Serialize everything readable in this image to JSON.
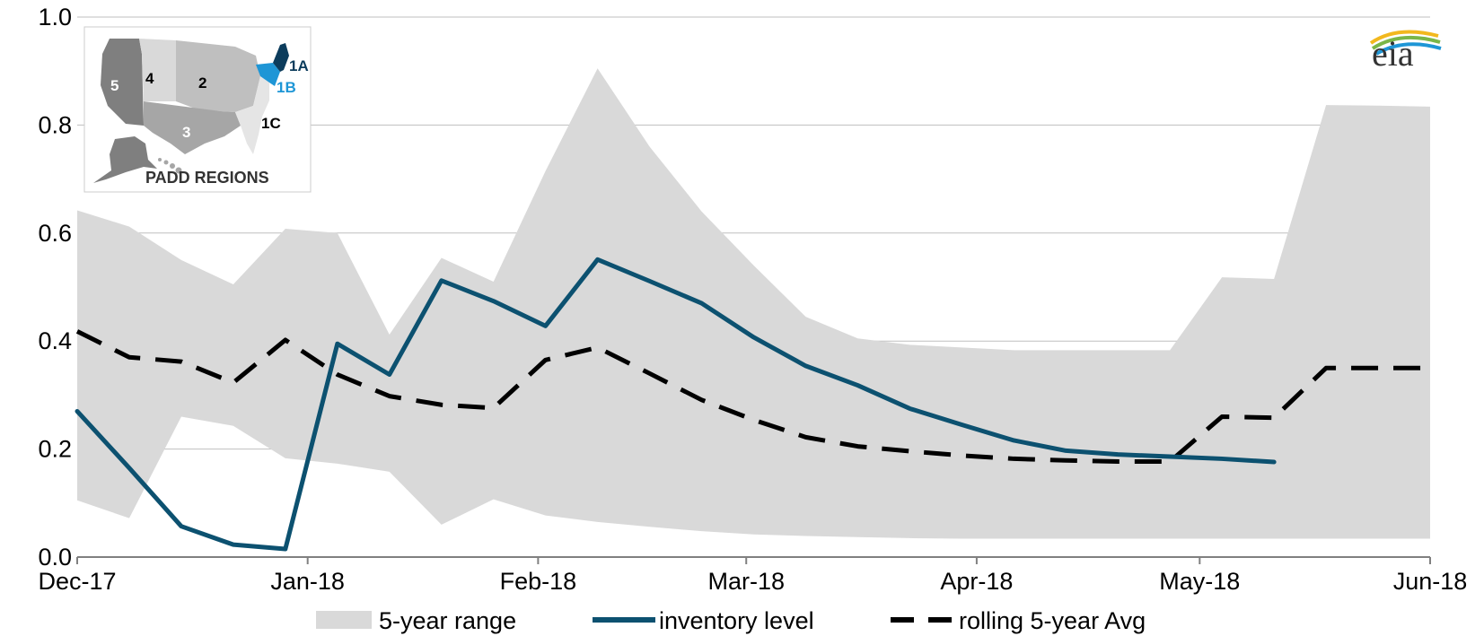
{
  "chart_data": {
    "type": "line",
    "title": "",
    "xlabel": "",
    "ylabel": "",
    "ylim": [
      0,
      1.0
    ],
    "yticks": [
      0.0,
      0.2,
      0.4,
      0.6,
      0.8,
      1.0
    ],
    "ytick_labels": [
      "0.0",
      "0.2",
      "0.4",
      "0.6",
      "0.8",
      "1.0"
    ],
    "xlim": [
      "2017-12-01",
      "2018-06-01"
    ],
    "xtick_labels": [
      {
        "date": "2017-12-01",
        "label": "Dec-17"
      },
      {
        "date": "2018-01-01",
        "label": "Jan-18"
      },
      {
        "date": "2018-02-01",
        "label": "Feb-18"
      },
      {
        "date": "2018-03-01",
        "label": "Mar-18"
      },
      {
        "date": "2018-04-01",
        "label": "Apr-18"
      },
      {
        "date": "2018-05-01",
        "label": "May-18"
      },
      {
        "date": "2018-06-01",
        "label": "Jun-18"
      }
    ],
    "grid": "horizontal",
    "legend_position": "bottom",
    "range_band": {
      "name": "5-year range",
      "color": "#d9d9d9",
      "x": [
        "2017-12-01",
        "2017-12-08",
        "2017-12-15",
        "2017-12-22",
        "2017-12-29",
        "2018-01-05",
        "2018-01-12",
        "2018-01-19",
        "2018-01-26",
        "2018-02-02",
        "2018-02-09",
        "2018-02-16",
        "2018-02-23",
        "2018-03-02",
        "2018-03-09",
        "2018-03-16",
        "2018-03-23",
        "2018-03-30",
        "2018-04-06",
        "2018-04-13",
        "2018-04-20",
        "2018-04-27",
        "2018-05-04",
        "2018-05-11",
        "2018-05-18",
        "2018-05-25",
        "2018-06-01"
      ],
      "low": [
        0.105,
        0.072,
        0.26,
        0.243,
        0.183,
        0.173,
        0.158,
        0.06,
        0.107,
        0.077,
        0.065,
        0.056,
        0.048,
        0.042,
        0.039,
        0.037,
        0.035,
        0.034,
        0.034,
        0.034,
        0.034,
        0.034,
        0.034,
        0.034,
        0.034,
        0.034,
        0.034
      ],
      "high": [
        0.642,
        0.612,
        0.55,
        0.505,
        0.608,
        0.6,
        0.412,
        0.554,
        0.51,
        0.715,
        0.905,
        0.76,
        0.64,
        0.54,
        0.445,
        0.405,
        0.393,
        0.388,
        0.383,
        0.383,
        0.383,
        0.383,
        0.518,
        0.515,
        0.837,
        0.836,
        0.834
      ]
    },
    "series": [
      {
        "name": "inventory level",
        "color": "#0c5170",
        "style": "solid",
        "x": [
          "2017-12-01",
          "2017-12-08",
          "2017-12-15",
          "2017-12-22",
          "2017-12-29",
          "2018-01-05",
          "2018-01-12",
          "2018-01-19",
          "2018-01-26",
          "2018-02-02",
          "2018-02-09",
          "2018-02-16",
          "2018-02-23",
          "2018-03-02",
          "2018-03-09",
          "2018-03-16",
          "2018-03-23",
          "2018-03-30",
          "2018-04-06",
          "2018-04-13",
          "2018-04-20",
          "2018-04-27",
          "2018-05-04",
          "2018-05-11"
        ],
        "values": [
          0.27,
          0.165,
          0.057,
          0.023,
          0.015,
          0.395,
          0.338,
          0.512,
          0.474,
          0.428,
          0.551,
          0.511,
          0.47,
          0.407,
          0.354,
          0.318,
          0.275,
          0.245,
          0.216,
          0.197,
          0.19,
          0.186,
          0.182,
          0.176
        ]
      },
      {
        "name": "rolling 5-year Avg",
        "color": "#000000",
        "style": "dashed",
        "x": [
          "2017-12-01",
          "2017-12-08",
          "2017-12-15",
          "2017-12-22",
          "2017-12-29",
          "2018-01-05",
          "2018-01-12",
          "2018-01-19",
          "2018-01-26",
          "2018-02-02",
          "2018-02-09",
          "2018-02-16",
          "2018-02-23",
          "2018-03-02",
          "2018-03-09",
          "2018-03-16",
          "2018-03-23",
          "2018-03-30",
          "2018-04-06",
          "2018-04-13",
          "2018-04-20",
          "2018-04-27",
          "2018-05-04",
          "2018-05-11",
          "2018-05-18",
          "2018-05-25",
          "2018-06-01"
        ],
        "values": [
          0.418,
          0.37,
          0.362,
          0.323,
          0.402,
          0.338,
          0.298,
          0.282,
          0.276,
          0.365,
          0.388,
          0.34,
          0.291,
          0.254,
          0.222,
          0.205,
          0.196,
          0.188,
          0.182,
          0.179,
          0.177,
          0.177,
          0.26,
          0.258,
          0.35,
          0.35,
          0.35
        ]
      }
    ]
  },
  "inset_map": {
    "title": "PADD REGIONS",
    "regions": [
      {
        "label": "1A",
        "color": "#0c3c5c"
      },
      {
        "label": "1B",
        "color": "#1e96d6"
      },
      {
        "label": "1C",
        "color": "#000000"
      },
      {
        "label": "2",
        "color": "#000000"
      },
      {
        "label": "3",
        "color": "#ffffff"
      },
      {
        "label": "4",
        "color": "#000000"
      },
      {
        "label": "5",
        "color": "#ffffff"
      }
    ]
  },
  "logo": {
    "text": "eia"
  }
}
